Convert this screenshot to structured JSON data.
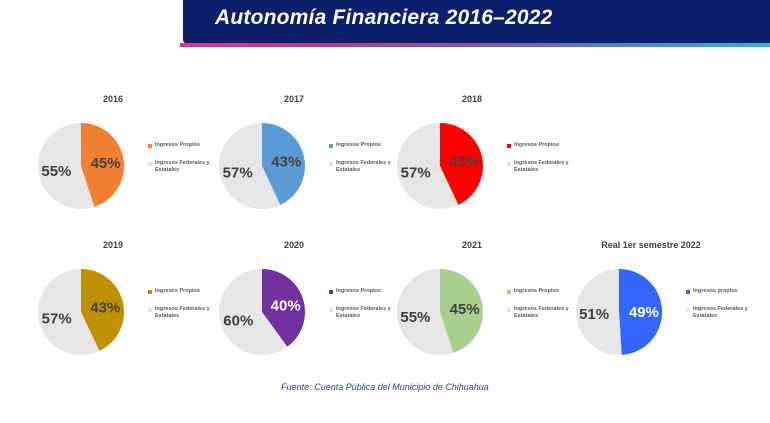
{
  "header": {
    "title": "Autonomía Financiera 2016–2022"
  },
  "source": "Fuente: Cuenta Pública del Municipio de Chihuahua",
  "chart_data": [
    {
      "type": "pie",
      "title": "2016",
      "slices": [
        {
          "label": "Ingresos Propios",
          "value": 45,
          "display": "45%",
          "color": "#f07f32"
        },
        {
          "label": "Ingresos Federales y Estatales",
          "value": 55,
          "display": "55%",
          "color": "#e6e6e6"
        }
      ]
    },
    {
      "type": "pie",
      "title": "2017",
      "slices": [
        {
          "label": "Ingresos Propios",
          "value": 43,
          "display": "43%",
          "color": "#5b9bd5"
        },
        {
          "label": "Ingresos Federales y Estatales",
          "value": 57,
          "display": "57%",
          "color": "#e6e6e6"
        }
      ]
    },
    {
      "type": "pie",
      "title": "2018",
      "slices": [
        {
          "label": "Ingresos Propios",
          "value": 43,
          "display": "43%",
          "color": "#ff0000"
        },
        {
          "label": "Ingresos Federales y Estatales",
          "value": 57,
          "display": "57%",
          "color": "#e6e6e6"
        }
      ]
    },
    {
      "type": "pie",
      "title": "2019",
      "slices": [
        {
          "label": "Ingresos Propios",
          "value": 43,
          "display": "43%",
          "color": "#bf9000"
        },
        {
          "label": "Ingresos Federales y Estatales",
          "value": 57,
          "display": "57%",
          "color": "#e6e6e6"
        }
      ]
    },
    {
      "type": "pie",
      "title": "2020",
      "slices": [
        {
          "label": "Ingresos Propios",
          "value": 40,
          "display": "40%",
          "color": "#7030a0"
        },
        {
          "label": "Ingresos Federales y Estatales",
          "value": 60,
          "display": "60%",
          "color": "#e6e6e6"
        }
      ]
    },
    {
      "type": "pie",
      "title": "2021",
      "slices": [
        {
          "label": "Ingresos Propios",
          "value": 45,
          "display": "45%",
          "color": "#a9d18e"
        },
        {
          "label": "Ingresos Federales y Estatales",
          "value": 55,
          "display": "55%",
          "color": "#e6e6e6"
        }
      ]
    },
    {
      "type": "pie",
      "title": "Real 1er semestre 2022",
      "slices": [
        {
          "label": "Ingresos propios",
          "value": 49,
          "display": "49%",
          "color": "#3366ff"
        },
        {
          "label": "Ingresos Federales y Estatales",
          "value": 51,
          "display": "51%",
          "color": "#e6e6e6"
        }
      ]
    }
  ]
}
